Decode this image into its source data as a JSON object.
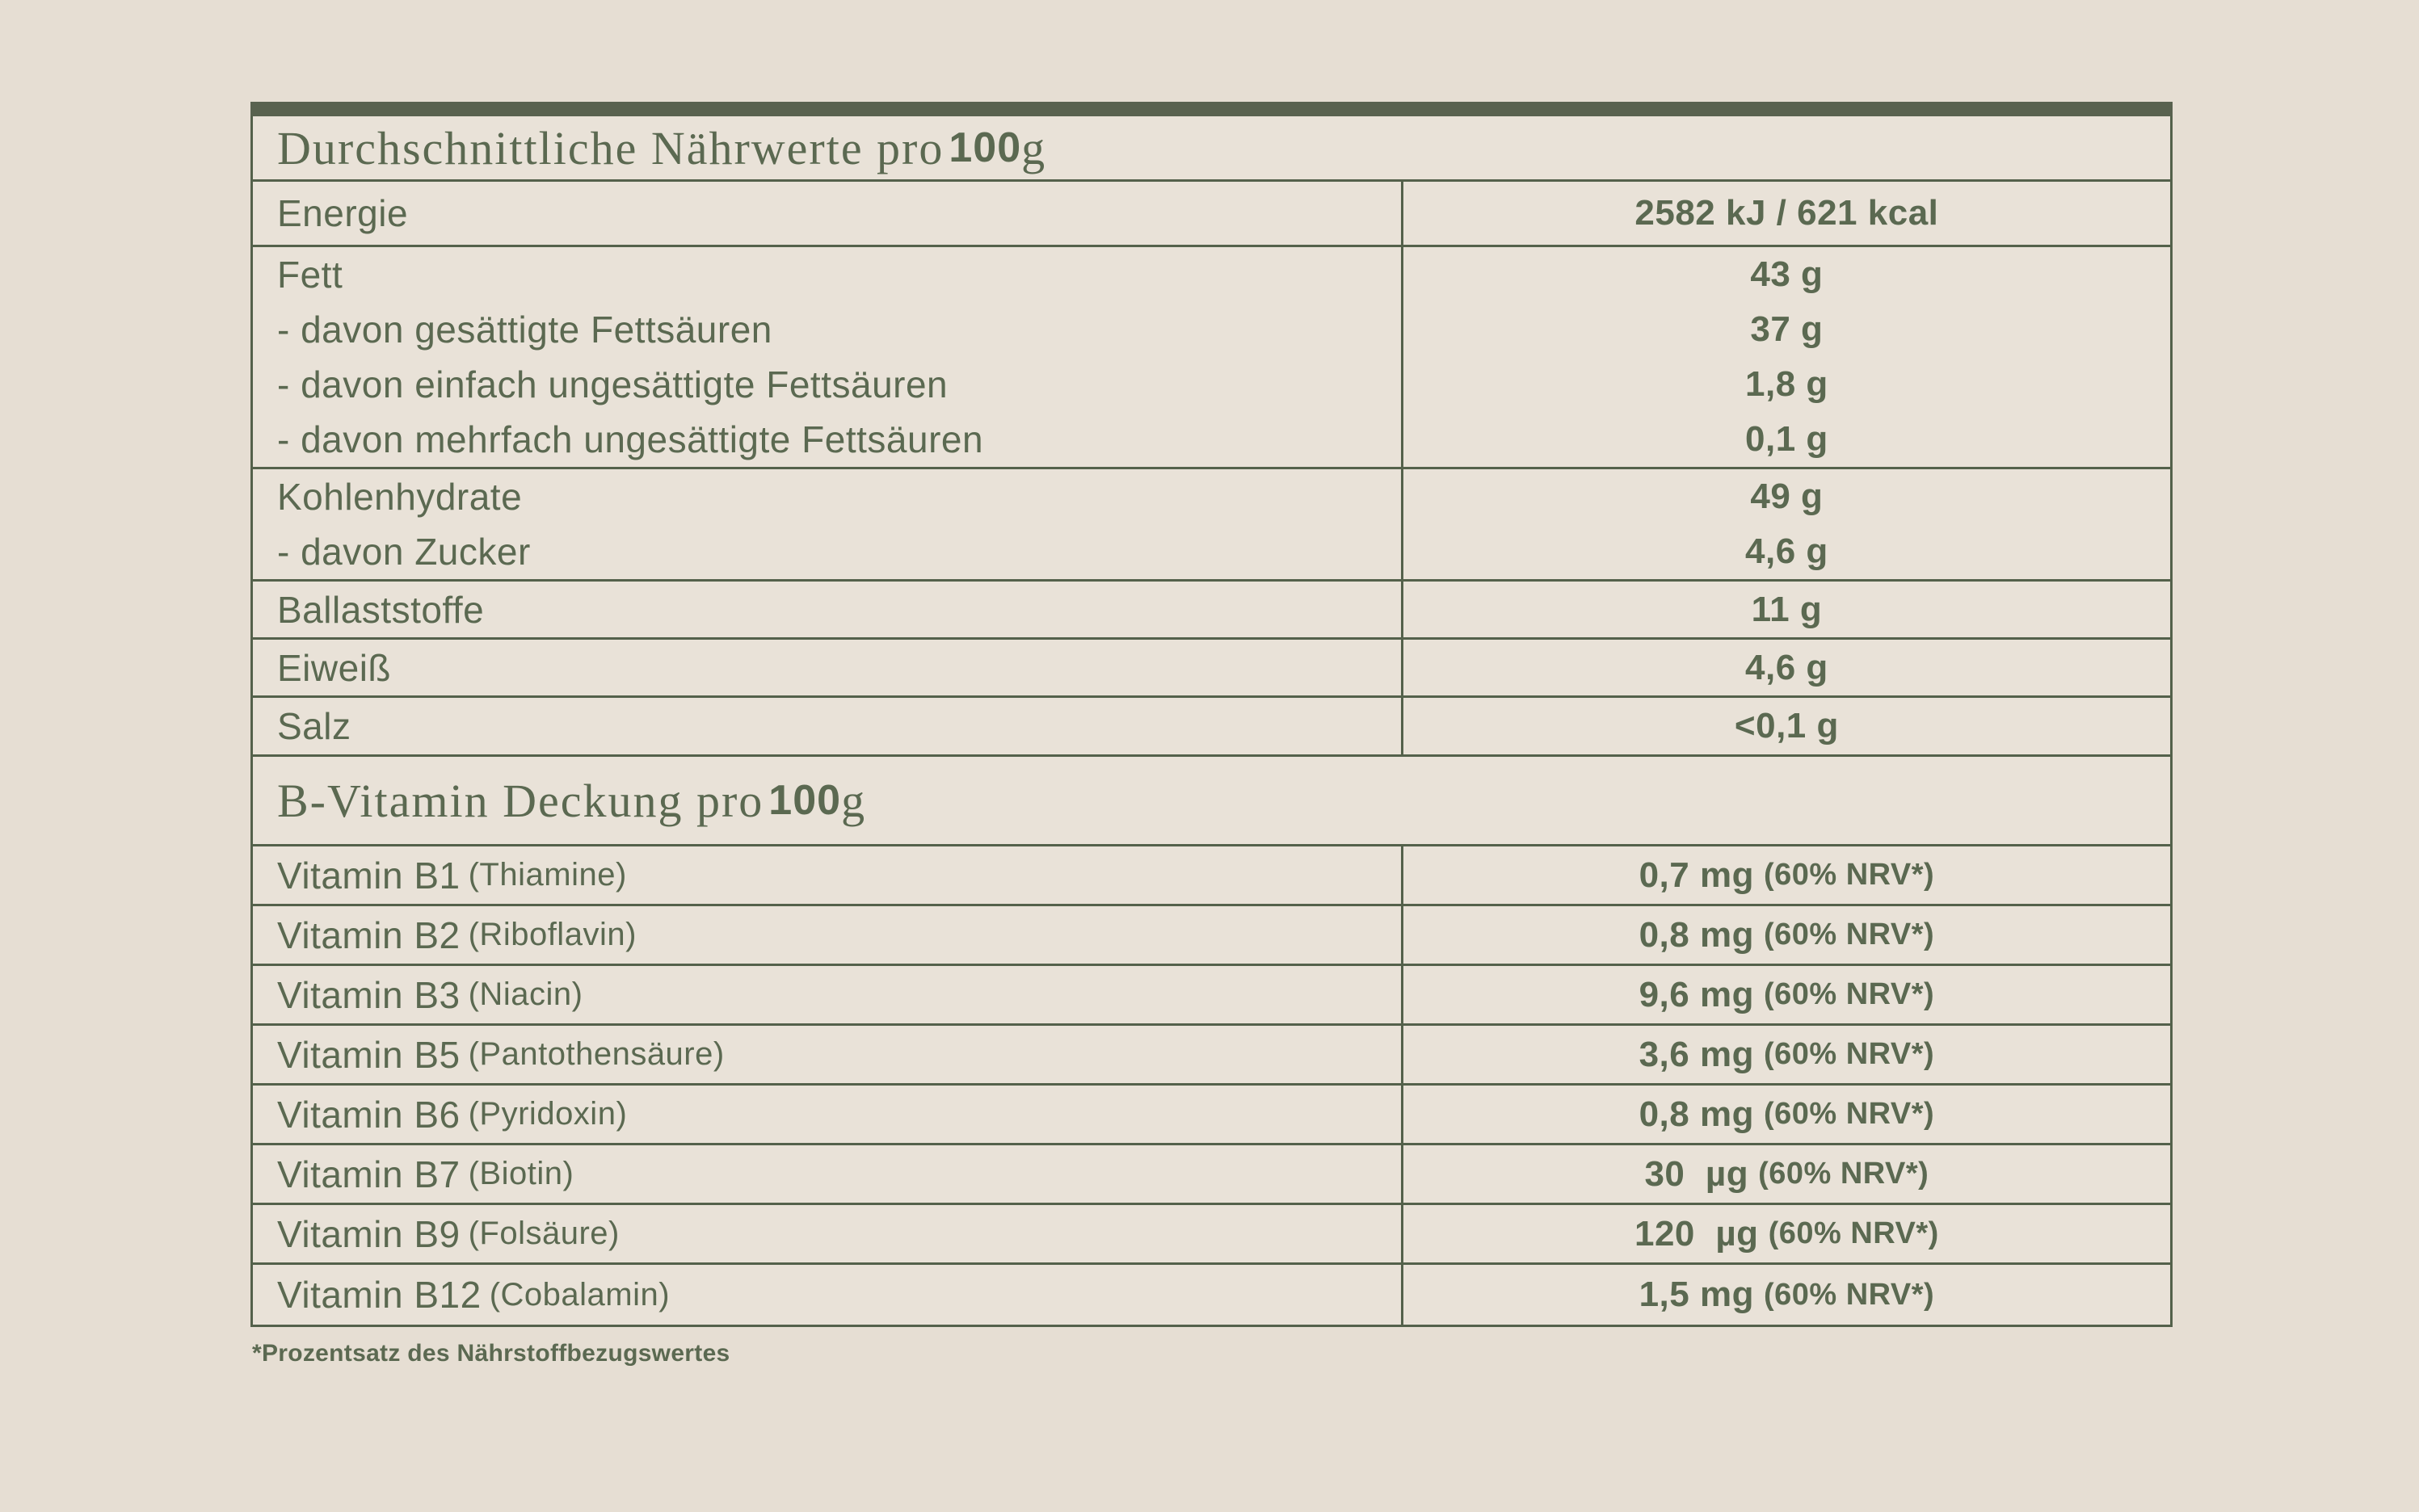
{
  "colors": {
    "page_background": "#e6ded3",
    "table_background": "#e9e2d8",
    "header_bar_green": "#59624f",
    "grid_line_green": "#54614b",
    "text_green": "#5b6951"
  },
  "nutrition_section": {
    "title": {
      "prefix": "Durchschnittliche Nährwerte pro",
      "number": "100",
      "suffix": "g"
    },
    "energie": {
      "label": "Energie",
      "value": "2582 kJ / 621 kcal"
    },
    "fett": {
      "lines": [
        {
          "label": "Fett",
          "value": "43 g"
        },
        {
          "label": "- davon gesättigte Fettsäuren",
          "value": "37 g"
        },
        {
          "label": "- davon einfach ungesättigte Fettsäuren",
          "value": "1,8 g"
        },
        {
          "label": "- davon mehrfach ungesättigte Fettsäuren",
          "value": "0,1 g"
        }
      ]
    },
    "kohlenhydrate": {
      "lines": [
        {
          "label": "Kohlenhydrate",
          "value": "49 g"
        },
        {
          "label": "- davon Zucker",
          "value": "4,6 g"
        }
      ]
    },
    "ballaststoffe": {
      "label": "Ballaststoffe",
      "value": "11 g"
    },
    "eiweiss": {
      "label": "Eiweiß",
      "value": "4,6 g"
    },
    "salz": {
      "label": "Salz",
      "value": "<0,1 g"
    }
  },
  "vitamin_section": {
    "title": {
      "prefix": "B-Vitamin Deckung pro",
      "number": "100",
      "suffix": "g"
    },
    "rows": [
      {
        "name": "Vitamin B1",
        "paren": "(Thiamine)",
        "value": "0,7 mg",
        "nrv": "(60% NRV*)"
      },
      {
        "name": "Vitamin B2",
        "paren": "(Riboflavin)",
        "value": "0,8 mg",
        "nrv": "(60% NRV*)"
      },
      {
        "name": "Vitamin B3",
        "paren": "(Niacin)",
        "value": "9,6 mg",
        "nrv": "(60% NRV*)"
      },
      {
        "name": "Vitamin B5",
        "paren": "(Pantothensäure)",
        "value": "3,6 mg",
        "nrv": "(60% NRV*)"
      },
      {
        "name": "Vitamin B6",
        "paren": "(Pyridoxin)",
        "value": "0,8 mg",
        "nrv": "(60% NRV*)"
      },
      {
        "name": "Vitamin B7",
        "paren": "(Biotin)",
        "value": "30  µg",
        "nrv": "(60% NRV*)"
      },
      {
        "name": "Vitamin B9",
        "paren": "(Folsäure)",
        "value": "120  µg",
        "nrv": "(60% NRV*)"
      },
      {
        "name": "Vitamin B12",
        "paren": "(Cobalamin)",
        "value": "1,5 mg",
        "nrv": "(60% NRV*)"
      }
    ]
  },
  "footnote": "*Prozentsatz des Nährstoffbezugswertes"
}
